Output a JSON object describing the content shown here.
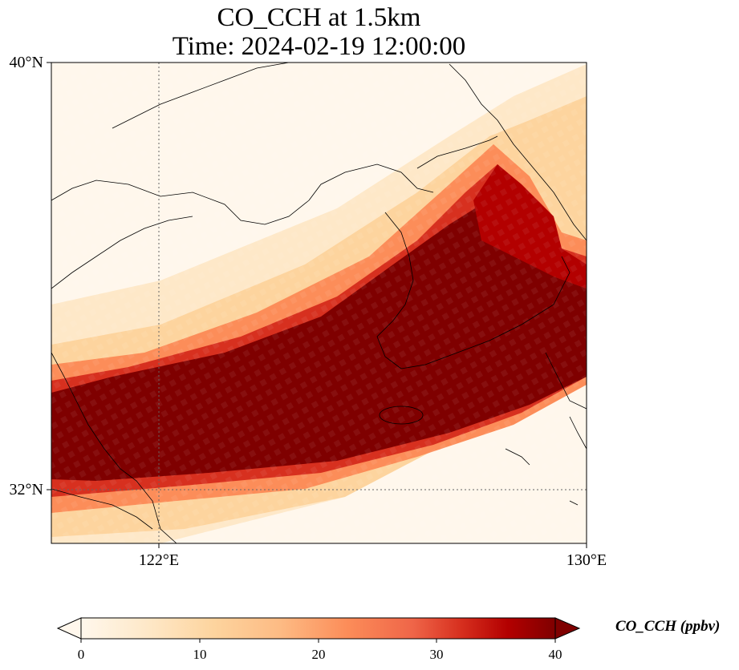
{
  "title": {
    "line1": "CO_CCH at 1.5km",
    "line2": "Time: 2024-02-19 12:00:00"
  },
  "axes": {
    "lat_labels": [
      "40°N",
      "32°N"
    ],
    "lon_labels": [
      "122°E",
      "130°E"
    ],
    "lat_range": [
      31,
      40
    ],
    "lon_range": [
      120,
      130
    ],
    "gridlines": "dotted at 122°E and 32°N"
  },
  "colorbar": {
    "ticks": [
      "0",
      "10",
      "20",
      "30",
      "40"
    ],
    "range": [
      0,
      40
    ],
    "extend": "both",
    "colormap": "OrRd",
    "label": "CO_CCH (ppbv)"
  },
  "colors": {
    "low": "#fff7ec",
    "mid": "#fdbb84",
    "high": "#d7301f",
    "max": "#7f0000"
  },
  "chart_data": {
    "type": "heatmap",
    "variable": "CO_CCH",
    "units": "ppbv",
    "level": "1.5km",
    "time": "2024-02-19 12:00:00",
    "plume_axis": {
      "description": "high-concentration band running from ~31.9°N,120°E northeast to ~35.5°N,130°E",
      "peak_value": 40
    }
  }
}
